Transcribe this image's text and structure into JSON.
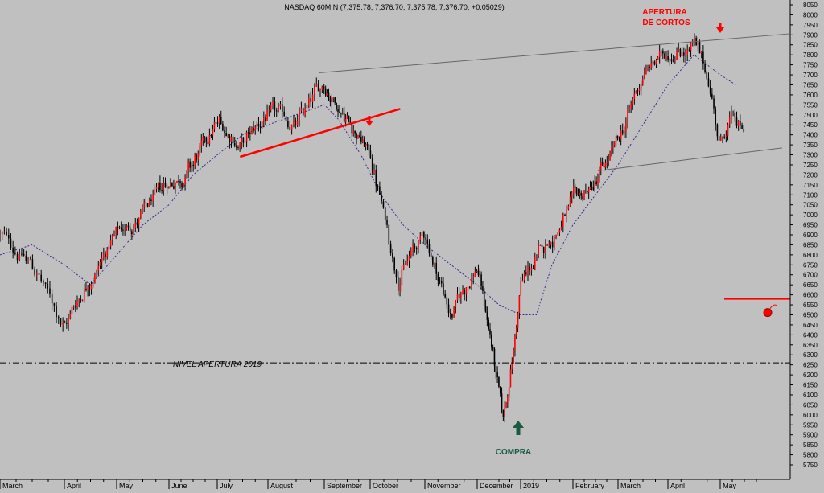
{
  "chart_data": {
    "type": "candlestick",
    "title": "NASDAQ 60MIN (7,375.78, 7,376.70, 7,375.78, 7,376.70, +0.05029)",
    "xlabel": "",
    "ylabel": "",
    "ylim": [
      5750,
      8050
    ],
    "yticks": [
      5750,
      5800,
      5850,
      5900,
      5950,
      6000,
      6050,
      6100,
      6150,
      6200,
      6250,
      6300,
      6350,
      6400,
      6450,
      6500,
      6550,
      6600,
      6650,
      6700,
      6750,
      6800,
      6850,
      6900,
      6950,
      7000,
      7050,
      7100,
      7150,
      7200,
      7250,
      7300,
      7350,
      7400,
      7450,
      7500,
      7550,
      7600,
      7650,
      7700,
      7750,
      7800,
      7850,
      7900,
      7950,
      8000,
      8050
    ],
    "months": [
      "March",
      "April",
      "May",
      "June",
      "July",
      "August",
      "September",
      "October",
      "November",
      "December",
      "2019",
      "February",
      "March",
      "April",
      "May"
    ],
    "price_path": {
      "months_index": [
        0,
        0.5,
        1,
        1.5,
        2,
        2.5,
        3,
        3.5,
        4,
        4.5,
        5,
        5.5,
        6,
        6.5,
        7,
        7.5,
        8,
        8.5,
        9,
        9.3,
        9.6,
        9.85,
        10,
        10.5,
        11,
        11.5,
        12,
        12.5,
        13,
        13.5,
        13.8,
        14,
        14.2,
        14.45
      ],
      "values": [
        6900,
        6750,
        6450,
        6700,
        6900,
        7000,
        7150,
        7250,
        7450,
        7350,
        7500,
        7450,
        7650,
        7500,
        7300,
        6700,
        6900,
        6500,
        6750,
        6400,
        5950,
        6350,
        6650,
        6850,
        7050,
        7150,
        7350,
        7700,
        7820,
        7850,
        7650,
        7350,
        7500,
        7380
      ]
    },
    "moving_average": {
      "months_index": [
        0,
        0.5,
        1,
        1.5,
        2,
        2.5,
        3,
        3.5,
        4,
        4.5,
        5,
        5.5,
        6,
        6.3,
        6.8,
        7.2,
        7.6,
        8,
        8.5,
        9,
        9.5,
        10,
        10.3,
        10.6,
        11,
        11.5,
        12,
        12.5,
        13,
        13.5,
        14,
        14.3
      ],
      "values": [
        6800,
        6850,
        6750,
        6650,
        6800,
        6950,
        7050,
        7200,
        7300,
        7400,
        7450,
        7500,
        7550,
        7480,
        7300,
        7100,
        6950,
        6850,
        6750,
        6650,
        6550,
        6500,
        6500,
        6750,
        6950,
        7100,
        7250,
        7450,
        7650,
        7800,
        7700,
        7650
      ]
    },
    "levels": [
      {
        "label": "NIVEL APERTURA 2019",
        "value": 6260
      }
    ],
    "annotations": {
      "buy_label": "COMPRA",
      "short_label_line1": "APERTURA",
      "short_label_line2": "DE CORTOS",
      "stop_level": 6580
    },
    "colors": {
      "background": "#c0c0c0",
      "bull_candle": "#ff0000",
      "bear_candle": "#000000",
      "moving_average": "#3a2a8c",
      "trendline": "#ff0000",
      "channel": "#666666",
      "buy_arrow": "#1a5a40",
      "sell_arrow": "#ff0000"
    }
  }
}
